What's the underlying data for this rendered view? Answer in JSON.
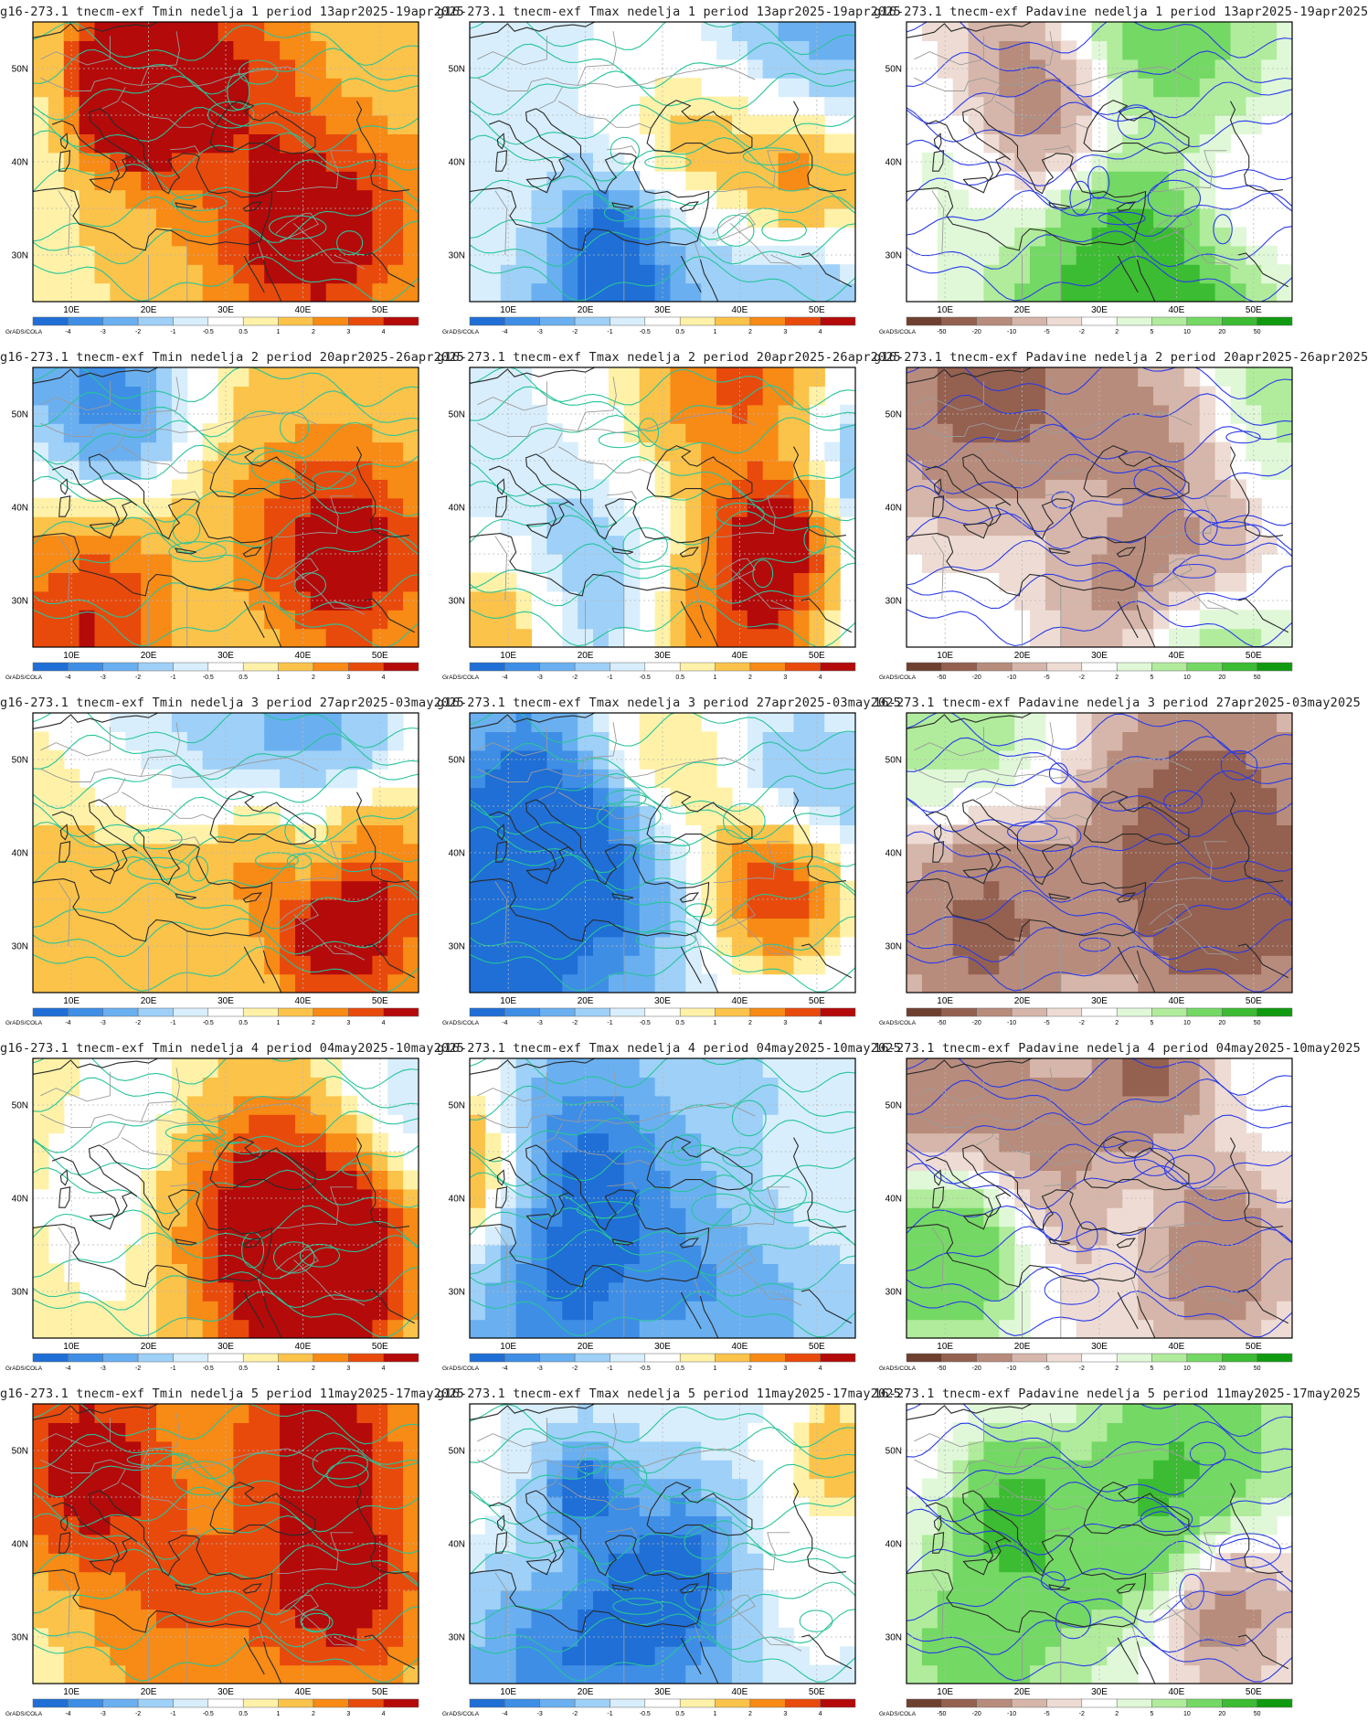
{
  "panels": [
    {
      "title": "g16-273.1 tnecm-exf Tmin nedelja 1 period 13apr2025-19apr2025",
      "variable": "Tmin",
      "week": 1
    },
    {
      "title": "g16-273.1 tnecm-exf Tmax nedelja 1 period 13apr2025-19apr2025",
      "variable": "Tmax",
      "week": 1
    },
    {
      "title": "g16-273.1 tnecm-exf Padavine nedelja 1 period 13apr2025-19apr2025",
      "variable": "Padavine",
      "week": 1
    },
    {
      "title": "g16-273.1 tnecm-exf Tmin nedelja 2 period 20apr2025-26apr2025",
      "variable": "Tmin",
      "week": 2
    },
    {
      "title": "g16-273.1 tnecm-exf Tmax nedelja 2 period 20apr2025-26apr2025",
      "variable": "Tmax",
      "week": 2
    },
    {
      "title": "g16-273.1 tnecm-exf Padavine nedelja 2 period 20apr2025-26apr2025",
      "variable": "Padavine",
      "week": 2
    },
    {
      "title": "g16-273.1 tnecm-exf Tmin nedelja 3 period 27apr2025-03may2025",
      "variable": "Tmin",
      "week": 3
    },
    {
      "title": "g16-273.1 tnecm-exf Tmax nedelja 3 period 27apr2025-03may2025",
      "variable": "Tmax",
      "week": 3
    },
    {
      "title": "16-273.1 tnecm-exf Padavine nedelja 3 period 27apr2025-03may2025",
      "variable": "Padavine",
      "week": 3
    },
    {
      "title": "g16-273.1 tnecm-exf Tmin nedelja 4 period 04may2025-10may2025",
      "variable": "Tmin",
      "week": 4
    },
    {
      "title": "g16-273.1 tnecm-exf Tmax nedelja 4 period 04may2025-10may2025",
      "variable": "Tmax",
      "week": 4
    },
    {
      "title": "16-273.1 tnecm-exf Padavine nedelja 4 period 04may2025-10may2025",
      "variable": "Padavine",
      "week": 4
    },
    {
      "title": "g16-273.1 tnecm-exf Tmin nedelja 5 period 11may2025-17may2025",
      "variable": "Tmin",
      "week": 5
    },
    {
      "title": "g16-273.1 tnecm-exf Tmax nedelja 5 period 11may2025-17may2025",
      "variable": "Tmax",
      "week": 5
    },
    {
      "title": "16-273.1 tnecm-exf Padavine nedelja 5 period 11may2025-17may2025",
      "variable": "Padavine",
      "week": 5
    }
  ],
  "axes": {
    "lat_labels": [
      "50N",
      "40N",
      "30N"
    ],
    "lon_labels": [
      "10E",
      "20E",
      "30E",
      "40E",
      "50E"
    ],
    "lon_range": [
      5,
      55
    ],
    "lat_range": [
      25,
      55
    ]
  },
  "legends": {
    "credit": "GrADS/COLA",
    "temp": {
      "labels": [
        "-4",
        "-3",
        "-2",
        "-1",
        "-0.5",
        "0.5",
        "1",
        "2",
        "3",
        "4"
      ],
      "colors": [
        "#1f6fd6",
        "#3f8ee6",
        "#6ab0f0",
        "#9ed0f8",
        "#d8eefc",
        "#ffffff",
        "#fff2a8",
        "#fbc34a",
        "#f88a16",
        "#e84a0c",
        "#b40a0a"
      ]
    },
    "precip": {
      "labels": [
        "-50",
        "-20",
        "-10",
        "-5",
        "-2",
        "2",
        "5",
        "10",
        "20",
        "50"
      ],
      "colors": [
        "#6e4030",
        "#946050",
        "#b88c7c",
        "#d6b6aa",
        "#eedcd4",
        "#ffffff",
        "#e0f8d8",
        "#b0ec9c",
        "#74d864",
        "#3cbc32",
        "#109a10"
      ]
    }
  },
  "colors": {
    "contour_temp": "#28c49a",
    "contour_precip": "#2a3ae8",
    "coast": "#2a2a2a",
    "border": "#9a9a9a",
    "grid": "#b8b8b8"
  }
}
